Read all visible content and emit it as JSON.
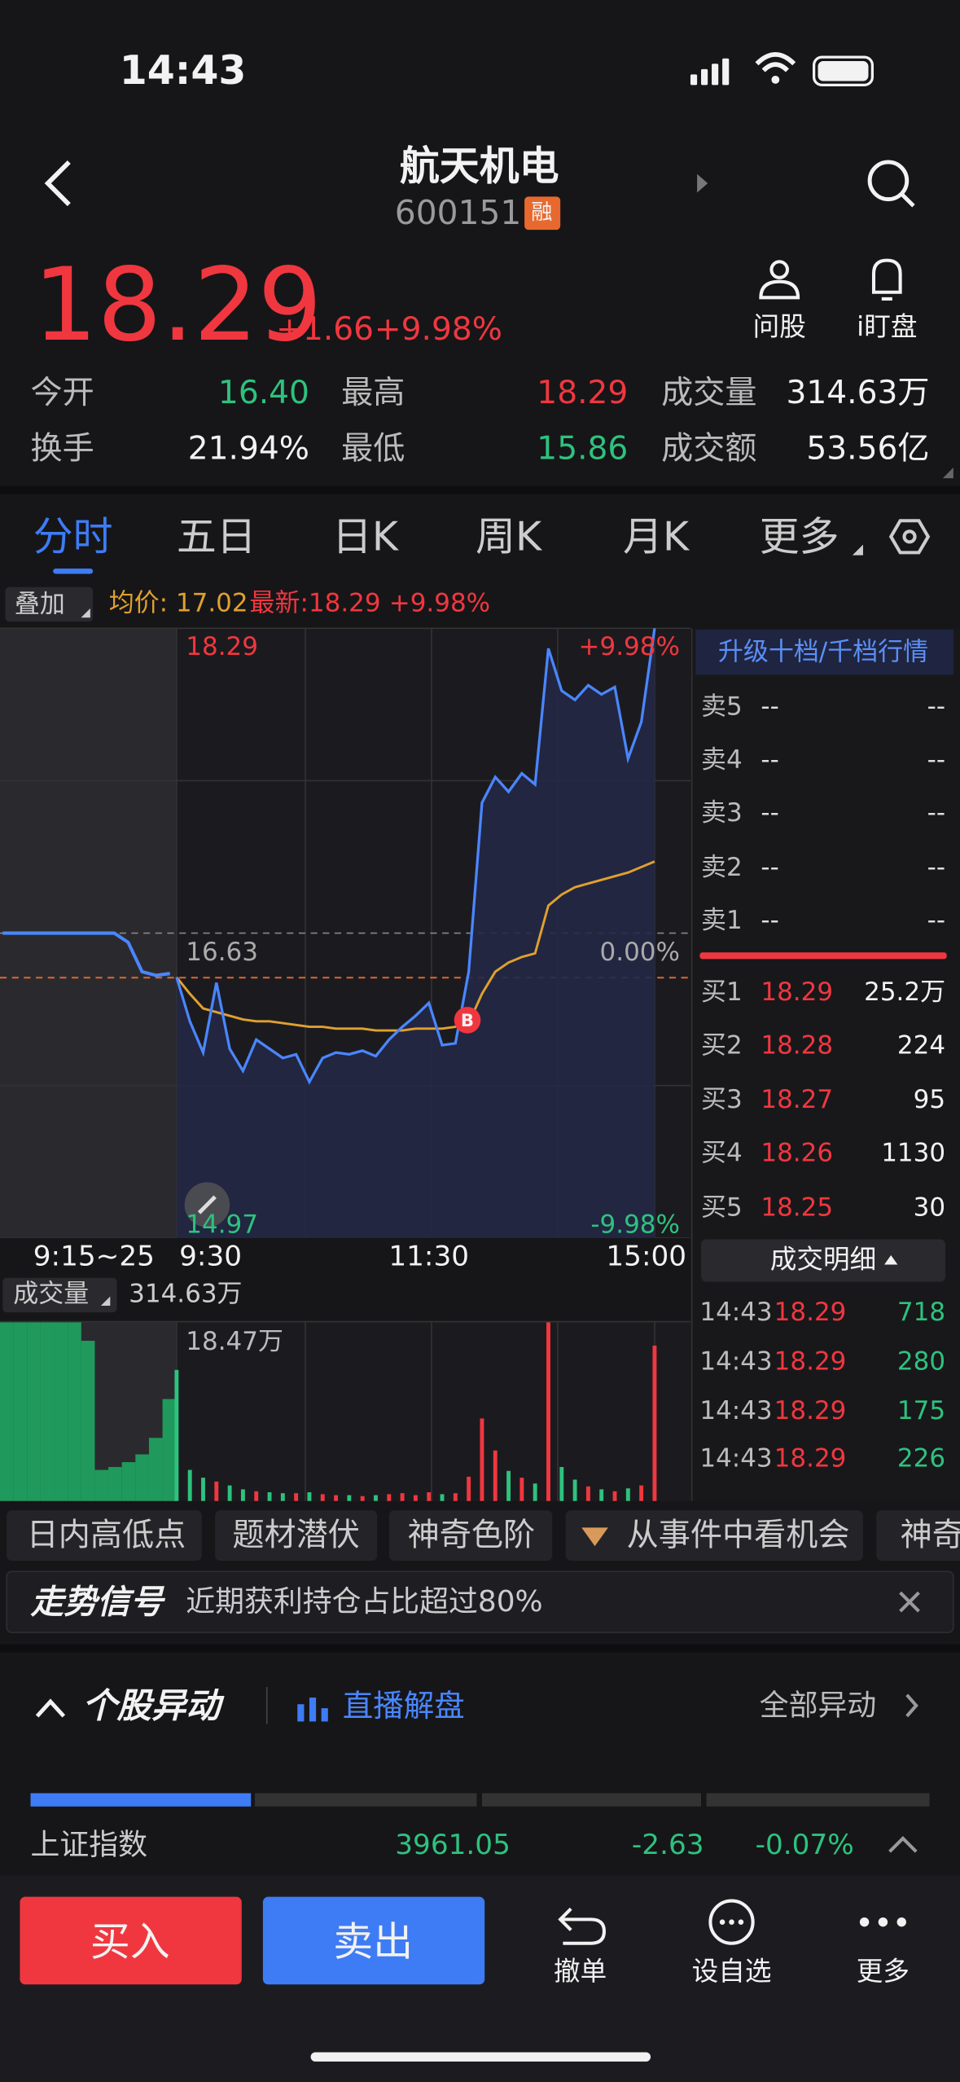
{
  "status_bar": {
    "time": "14:43"
  },
  "header": {
    "title": "航天机电",
    "code": "600151",
    "badge": "融"
  },
  "quote": {
    "price": "18.29",
    "change": "+1.66",
    "change_pct": "+9.98%",
    "actions": [
      "问股",
      "i盯盘"
    ]
  },
  "stats": [
    [
      "今开",
      "16.40",
      "最高",
      "18.29",
      "成交量",
      "314.63万"
    ],
    [
      "换手",
      "21.94%",
      "最低",
      "15.86",
      "成交额",
      "53.56亿"
    ]
  ],
  "tabs": [
    "分时",
    "五日",
    "日K",
    "周K",
    "月K",
    "更多"
  ],
  "overlay": {
    "button": "叠加",
    "avg": "均价: 17.02",
    "latest": "最新:18.29",
    "pct": "+9.98%"
  },
  "chart": {
    "price_axis": {
      "ylim": [
        14.97,
        18.29
      ],
      "yticks": [
        18.29,
        16.63,
        14.97
      ]
    },
    "pct_labels": [
      "+9.98%",
      "0.00%",
      "-9.98%"
    ],
    "time_labels": [
      "9:15~25",
      "9:30",
      "11:30",
      "15:00"
    ],
    "marker": "B",
    "pre_price": [
      16.63,
      16.63,
      16.63,
      16.63,
      16.63,
      16.63,
      16.63,
      16.63,
      16.63,
      16.58,
      16.42,
      16.4,
      16.41
    ],
    "price": [
      16.39,
      16.15,
      15.98,
      16.36,
      16.0,
      15.88,
      16.05,
      16.0,
      15.95,
      15.97,
      15.82,
      15.95,
      15.98,
      15.97,
      15.99,
      15.96,
      16.05,
      16.12,
      16.18,
      16.25,
      16.02,
      16.03,
      16.42,
      17.34,
      17.48,
      17.4,
      17.5,
      17.44,
      18.18,
      17.95,
      17.9,
      17.98,
      17.93,
      17.97,
      17.58,
      17.78,
      18.29
    ],
    "avg_price": [
      16.39,
      16.3,
      16.22,
      16.2,
      16.18,
      16.16,
      16.15,
      16.15,
      16.14,
      16.13,
      16.12,
      16.12,
      16.11,
      16.11,
      16.11,
      16.1,
      16.1,
      16.1,
      16.11,
      16.11,
      16.11,
      16.12,
      16.14,
      16.3,
      16.42,
      16.47,
      16.5,
      16.52,
      16.78,
      16.84,
      16.88,
      16.9,
      16.92,
      16.94,
      16.96,
      16.99,
      17.02
    ],
    "volume_label": "成交量",
    "volume_total": "314.63万",
    "volume_axis": {
      "ylim": [
        0,
        18.47
      ],
      "yticks": [
        {
          "value": 18.47,
          "label": "18.47万"
        }
      ]
    },
    "pre_volume": [
      18.4,
      18.4,
      18.4,
      18.4,
      18.4,
      18.4,
      16.5,
      3.2,
      3.5,
      4.0,
      4.8,
      6.5,
      10.5
    ],
    "volume": [
      13.5,
      3.2,
      2.4,
      2.0,
      1.6,
      1.2,
      1.0,
      0.9,
      0.8,
      0.8,
      0.9,
      0.7,
      0.6,
      0.6,
      0.5,
      0.6,
      0.7,
      0.8,
      0.6,
      0.9,
      0.7,
      0.8,
      2.5,
      8.5,
      5.2,
      3.1,
      2.4,
      1.8,
      18.4,
      3.5,
      2.2,
      1.5,
      1.2,
      1.0,
      1.3,
      1.6,
      16.0
    ]
  },
  "order_book": {
    "upgrade": "升级十档/千档行情",
    "asks": [
      [
        "卖5",
        "--",
        "--"
      ],
      [
        "卖4",
        "--",
        "--"
      ],
      [
        "卖3",
        "--",
        "--"
      ],
      [
        "卖2",
        "--",
        "--"
      ],
      [
        "卖1",
        "--",
        "--"
      ]
    ],
    "bids": [
      [
        "买1",
        "18.29",
        "25.2万"
      ],
      [
        "买2",
        "18.28",
        "224"
      ],
      [
        "买3",
        "18.27",
        "95"
      ],
      [
        "买4",
        "18.26",
        "1130"
      ],
      [
        "买5",
        "18.25",
        "30"
      ]
    ]
  },
  "trades": {
    "title": "成交明细",
    "rows": [
      [
        "14:43",
        "18.29",
        "718"
      ],
      [
        "14:43",
        "18.29",
        "280"
      ],
      [
        "14:43",
        "18.29",
        "175"
      ],
      [
        "14:43",
        "18.29",
        "226"
      ]
    ]
  },
  "chips": [
    "日内高低点",
    "题材潜伏",
    "神奇色阶",
    "从事件中看机会",
    "神奇"
  ],
  "signal": {
    "title": "走势信号",
    "text": "近期获利持仓占比超过80%"
  },
  "anomaly": {
    "title": "个股异动",
    "live": "直播解盘",
    "all": "全部异动"
  },
  "index_row": {
    "name": "上证指数",
    "value": "3961.05",
    "change": "-2.63",
    "change_pct": "-0.07%"
  },
  "bottom_bar": {
    "buy": "买入",
    "sell": "卖出",
    "actions": [
      "撤单",
      "设自选",
      "更多"
    ]
  }
}
